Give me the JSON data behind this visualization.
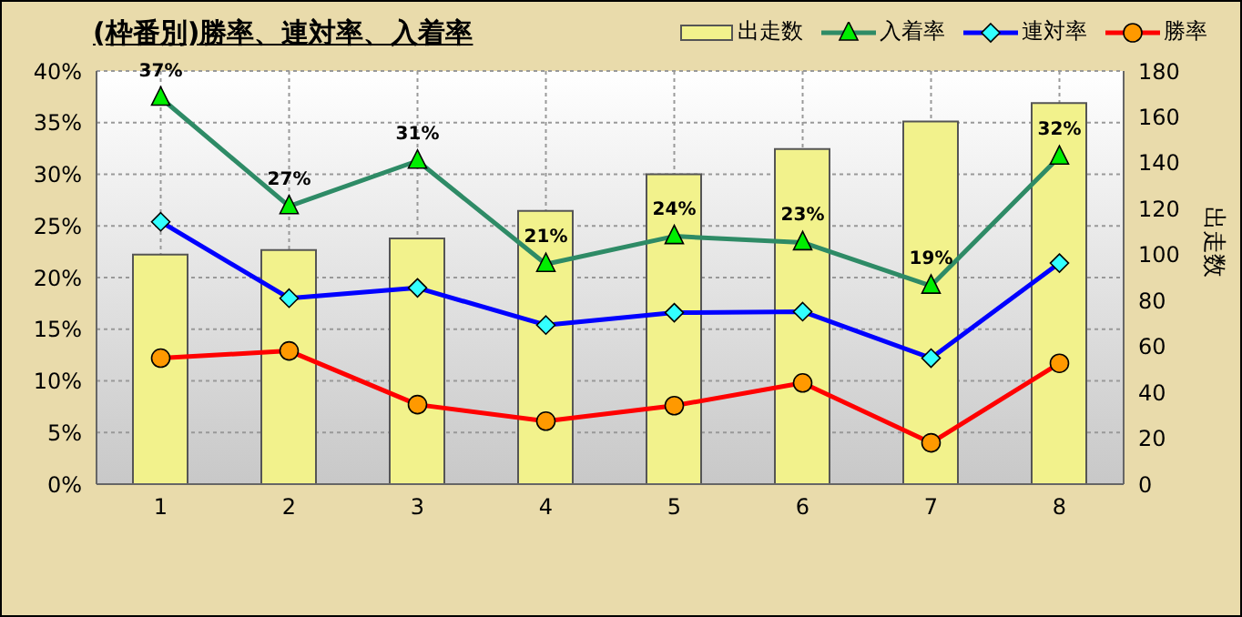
{
  "chart_data": {
    "type": "bar",
    "title": "(枠番別)勝率、連対率、入着率",
    "y2label": "出走数",
    "categories": [
      "1",
      "2",
      "3",
      "4",
      "5",
      "6",
      "7",
      "8"
    ],
    "series": [
      {
        "name": "出走数",
        "axis": "y2",
        "color": "#f2f28c",
        "values": [
          100,
          102,
          107,
          119,
          135,
          146,
          158,
          166
        ]
      },
      {
        "name": "入着率",
        "type": "line",
        "color": "#2e8b66",
        "marker": "triangle",
        "values": [
          37.4,
          26.9,
          31.3,
          21.3,
          24.0,
          23.4,
          19.2,
          31.7
        ],
        "value_labels": [
          "37%",
          "27%",
          "31%",
          "21%",
          "24%",
          "23%",
          "19%",
          "32%"
        ]
      },
      {
        "name": "連対率",
        "type": "line",
        "color": "#0000ff",
        "marker": "diamond",
        "values": [
          25.4,
          18.0,
          19.0,
          15.4,
          16.6,
          16.7,
          12.2,
          21.4
        ]
      },
      {
        "name": "勝率",
        "type": "line",
        "color": "#ff0000",
        "marker": "circle",
        "values": [
          12.2,
          12.9,
          7.7,
          6.1,
          7.6,
          9.8,
          4.0,
          11.7
        ]
      }
    ],
    "ylim": [
      0,
      40
    ],
    "yticks": [
      {
        "value": 0,
        "label": "0%"
      },
      {
        "value": 5,
        "label": "5%"
      },
      {
        "value": 10,
        "label": "10%"
      },
      {
        "value": 15,
        "label": "15%"
      },
      {
        "value": 20,
        "label": "20%"
      },
      {
        "value": 25,
        "label": "25%"
      },
      {
        "value": 30,
        "label": "30%"
      },
      {
        "value": 35,
        "label": "35%"
      },
      {
        "value": 40,
        "label": "40%"
      }
    ],
    "y2lim": [
      0,
      180
    ],
    "y2ticks": [
      0,
      20,
      40,
      60,
      80,
      100,
      120,
      140,
      160,
      180
    ],
    "grid": true,
    "legend": "top right"
  }
}
